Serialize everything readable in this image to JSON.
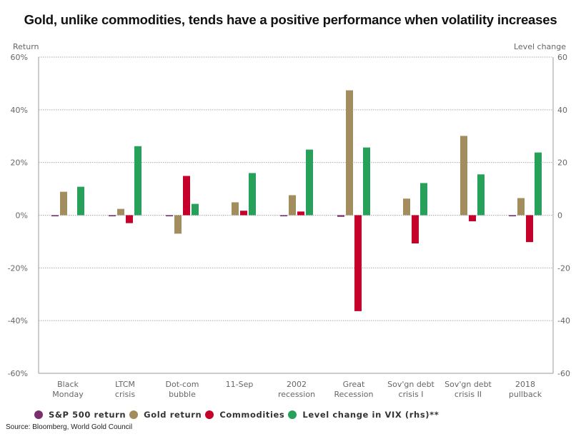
{
  "chart_data": {
    "type": "bar",
    "title": "Gold, unlike commodities, tends have a positive performance when volatility increases",
    "left_axis_label": "Return",
    "right_axis_label": "Level change",
    "ylim": [
      -60,
      60
    ],
    "y2lim": [
      -60,
      60
    ],
    "left_ticks": [
      "60%",
      "40%",
      "20%",
      "0%",
      "-20%",
      "-40%",
      "-60%"
    ],
    "right_ticks": [
      "60",
      "40",
      "20",
      "0",
      "-20",
      "-40",
      "-60"
    ],
    "tick_values": [
      60,
      40,
      20,
      0,
      -20,
      -40,
      -60
    ],
    "grid": true,
    "legend_position": "bottom",
    "categories": [
      [
        "Black",
        "Monday"
      ],
      [
        "LTCM",
        "crisis"
      ],
      [
        "Dot-com",
        "bubble"
      ],
      [
        "11-Sep",
        ""
      ],
      [
        "2002",
        "recession"
      ],
      [
        "Great",
        "Recession"
      ],
      [
        "Sov'gn debt",
        "crisis I"
      ],
      [
        "Sov'gn debt",
        "crisis II"
      ],
      [
        "2018",
        "pullback"
      ]
    ],
    "series": [
      {
        "name": "S&P 500 return",
        "color": "#7b2d6e",
        "axis": "left",
        "values": [
          -0.3,
          -0.3,
          -0.3,
          0.0,
          -0.3,
          -0.6,
          0.0,
          0.0,
          -0.3
        ]
      },
      {
        "name": "Gold return",
        "color": "#a38d5f",
        "axis": "left",
        "values": [
          8.9,
          2.4,
          -7.0,
          4.9,
          7.6,
          47.4,
          6.3,
          30.1,
          6.5
        ]
      },
      {
        "name": "Commodities",
        "color": "#c4002b",
        "axis": "left",
        "values": [
          0.0,
          -3.0,
          14.9,
          1.7,
          1.4,
          -36.4,
          -10.7,
          -2.3,
          -10.2
        ]
      },
      {
        "name": "Level change in VIX (rhs)**",
        "color": "#27a05a",
        "axis": "right",
        "values": [
          10.8,
          26.2,
          4.3,
          16.0,
          24.9,
          25.7,
          12.2,
          15.5,
          23.8
        ]
      }
    ],
    "source": "Source: Bloomberg, World Gold Council"
  }
}
